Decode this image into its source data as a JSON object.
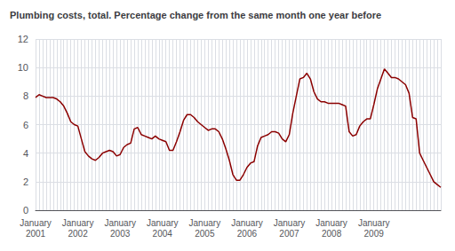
{
  "chart_data": {
    "type": "line",
    "title": "Plumbing costs, total. Percentage change from the same month one year before",
    "color": "#8B0000",
    "grid": true,
    "ylim": [
      0,
      12
    ],
    "yticks": [
      0,
      2,
      4,
      6,
      8,
      10,
      12
    ],
    "categories": [
      "January\n2001",
      null,
      null,
      null,
      null,
      null,
      null,
      null,
      null,
      null,
      null,
      null,
      "January\n2002",
      null,
      null,
      null,
      null,
      null,
      null,
      null,
      null,
      null,
      null,
      null,
      "January\n2003",
      null,
      null,
      null,
      null,
      null,
      null,
      null,
      null,
      null,
      null,
      null,
      "January\n2004",
      null,
      null,
      null,
      null,
      null,
      null,
      null,
      null,
      null,
      null,
      null,
      "January\n2005",
      null,
      null,
      null,
      null,
      null,
      null,
      null,
      null,
      null,
      null,
      null,
      "January\n2006",
      null,
      null,
      null,
      null,
      null,
      null,
      null,
      null,
      null,
      null,
      null,
      "January\n2007",
      null,
      null,
      null,
      null,
      null,
      null,
      null,
      null,
      null,
      null,
      null,
      "January\n2008",
      null,
      null,
      null,
      null,
      null,
      null,
      null,
      null,
      null,
      null,
      null,
      "January\n2009",
      null,
      null,
      null,
      null,
      null,
      null,
      null,
      null,
      null,
      null,
      null,
      null,
      null,
      null,
      null,
      null,
      null,
      null,
      null
    ],
    "values": [
      7.9,
      8.1,
      8.0,
      7.9,
      7.9,
      7.9,
      7.8,
      7.6,
      7.3,
      6.8,
      6.2,
      6.0,
      5.9,
      5.0,
      4.1,
      3.8,
      3.6,
      3.5,
      3.7,
      4.0,
      4.1,
      4.2,
      4.1,
      3.8,
      3.9,
      4.4,
      4.6,
      4.7,
      5.7,
      5.8,
      5.3,
      5.2,
      5.1,
      5.0,
      5.2,
      5.0,
      4.9,
      4.8,
      4.2,
      4.2,
      4.8,
      5.5,
      6.3,
      6.7,
      6.7,
      6.5,
      6.2,
      6.0,
      5.8,
      5.6,
      5.7,
      5.7,
      5.5,
      5.0,
      4.3,
      3.5,
      2.5,
      2.1,
      2.1,
      2.5,
      3.0,
      3.3,
      3.4,
      4.5,
      5.1,
      5.2,
      5.3,
      5.5,
      5.5,
      5.4,
      5.0,
      4.8,
      5.3,
      6.8,
      8.0,
      9.2,
      9.3,
      9.6,
      9.2,
      8.3,
      7.8,
      7.6,
      7.6,
      7.5,
      7.5,
      7.5,
      7.5,
      7.4,
      7.3,
      5.5,
      5.2,
      5.3,
      5.9,
      6.2,
      6.4,
      6.4,
      7.4,
      8.5,
      9.2,
      9.9,
      9.6,
      9.3,
      9.3,
      9.2,
      9.0,
      8.8,
      8.2,
      6.5,
      6.4,
      4.0,
      3.5,
      3.0,
      2.5,
      2.0,
      1.8,
      1.6
    ]
  }
}
